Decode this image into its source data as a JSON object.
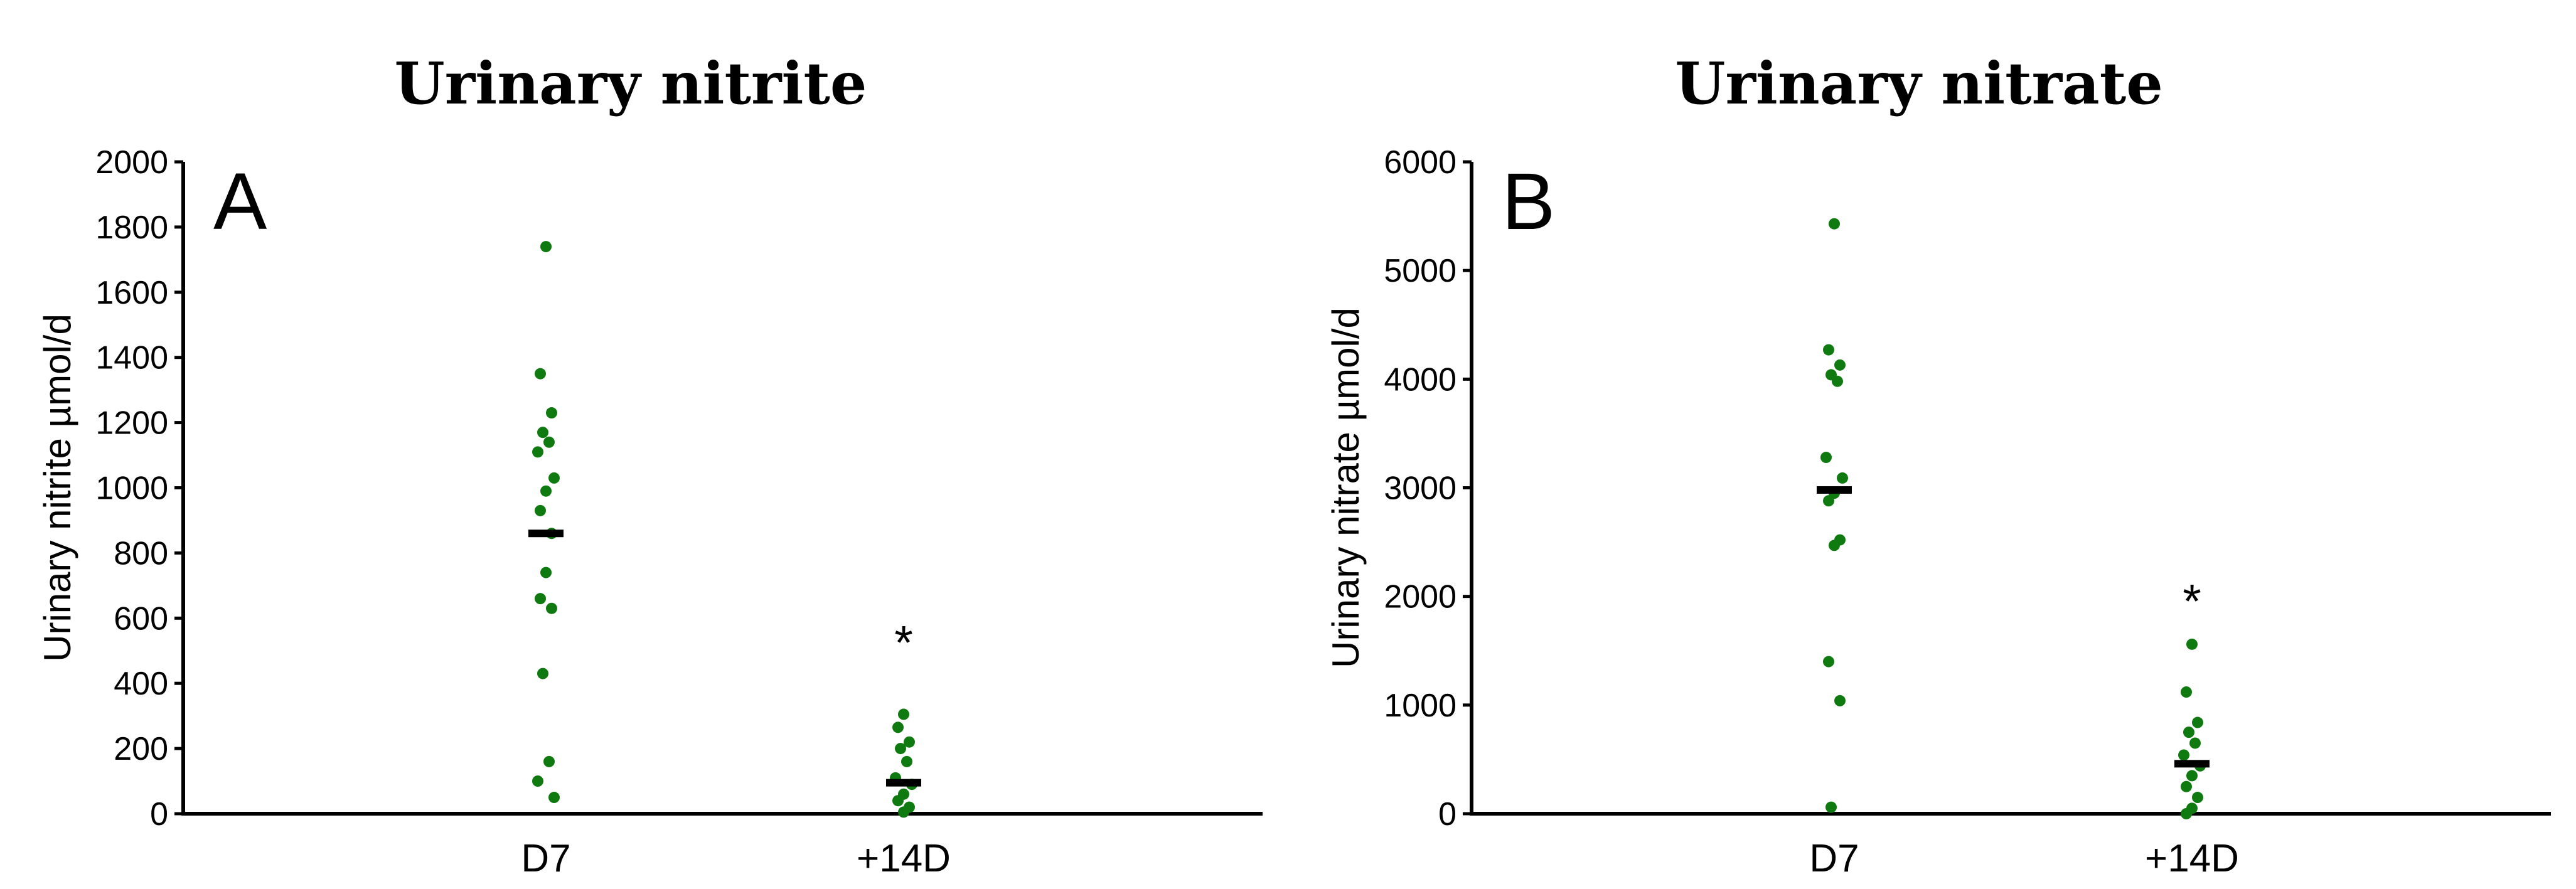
{
  "chart_data": [
    {
      "type": "scatter",
      "title": "Urinary nitrite",
      "panel_letter": "A",
      "xlabel": "",
      "ylabel": "Urinary nitrite µmol/d",
      "categories": [
        "D7",
        "+14D"
      ],
      "ylim": [
        0,
        2000
      ],
      "yticks": [
        0,
        200,
        400,
        600,
        800,
        1000,
        1200,
        1400,
        1600,
        1800,
        2000
      ],
      "points": [
        [
          1740,
          1350,
          1230,
          1170,
          1140,
          1110,
          1030,
          990,
          930,
          860,
          740,
          660,
          630,
          430,
          160,
          100,
          50
        ],
        [
          305,
          265,
          220,
          200,
          160,
          110,
          90,
          60,
          40,
          20,
          5
        ]
      ],
      "means": [
        860,
        95
      ],
      "annotations": [
        {
          "category": "+14D",
          "text": "*",
          "y": 540
        }
      ],
      "colors": {
        "points": "#0f7a0f",
        "mean": "#000000"
      }
    },
    {
      "type": "scatter",
      "title": "Urinary nitrate",
      "panel_letter": "B",
      "xlabel": "",
      "ylabel": "Urinary nitrate µmol/d",
      "categories": [
        "D7",
        "+14D"
      ],
      "ylim": [
        0,
        6000
      ],
      "yticks": [
        0,
        1000,
        2000,
        3000,
        4000,
        5000,
        6000
      ],
      "points": [
        [
          5430,
          4270,
          4130,
          4040,
          3980,
          3280,
          3090,
          2950,
          2880,
          2520,
          2470,
          1400,
          1040,
          60
        ],
        [
          1560,
          1120,
          840,
          750,
          650,
          540,
          440,
          350,
          250,
          150,
          50,
          0
        ]
      ],
      "means": [
        2980,
        460
      ],
      "annotations": [
        {
          "category": "+14D",
          "text": "*",
          "y": 2000
        }
      ],
      "colors": {
        "points": "#0f7a0f",
        "mean": "#000000"
      }
    }
  ]
}
